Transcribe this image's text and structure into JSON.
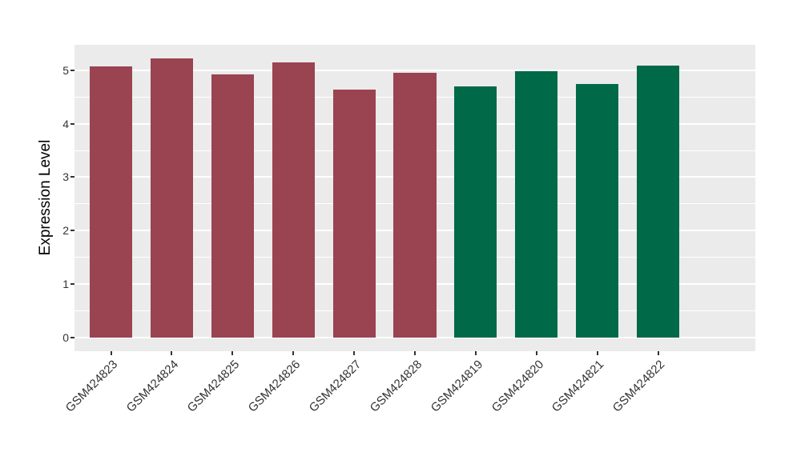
{
  "chart_data": {
    "type": "bar",
    "title": "",
    "xlabel": "",
    "ylabel": "Expression Level",
    "categories": [
      "GSM424823",
      "GSM424824",
      "GSM424825",
      "GSM424826",
      "GSM424827",
      "GSM424828",
      "GSM424819",
      "GSM424820",
      "GSM424821",
      "GSM424822"
    ],
    "values": [
      5.07,
      5.22,
      4.93,
      5.15,
      4.64,
      4.96,
      4.7,
      4.99,
      4.74,
      5.09
    ],
    "bar_colors": [
      "#9A4351",
      "#9A4351",
      "#9A4351",
      "#9A4351",
      "#9A4351",
      "#9A4351",
      "#006948",
      "#006948",
      "#006948",
      "#006948"
    ],
    "group_colors": {
      "red_group": "#9A4351",
      "green_group": "#006948"
    },
    "yticks": [
      0,
      1,
      2,
      3,
      4,
      5
    ],
    "yticks_minor": [
      0.5,
      1.5,
      2.5,
      3.5,
      4.5
    ],
    "ylim": [
      0,
      5.22
    ],
    "grid": true,
    "legend_position": "none",
    "panel_bg": "#EBEBEB",
    "grid_color": "#FFFFFF",
    "tick_color": "#333333",
    "tick_text_color": "#333333"
  }
}
